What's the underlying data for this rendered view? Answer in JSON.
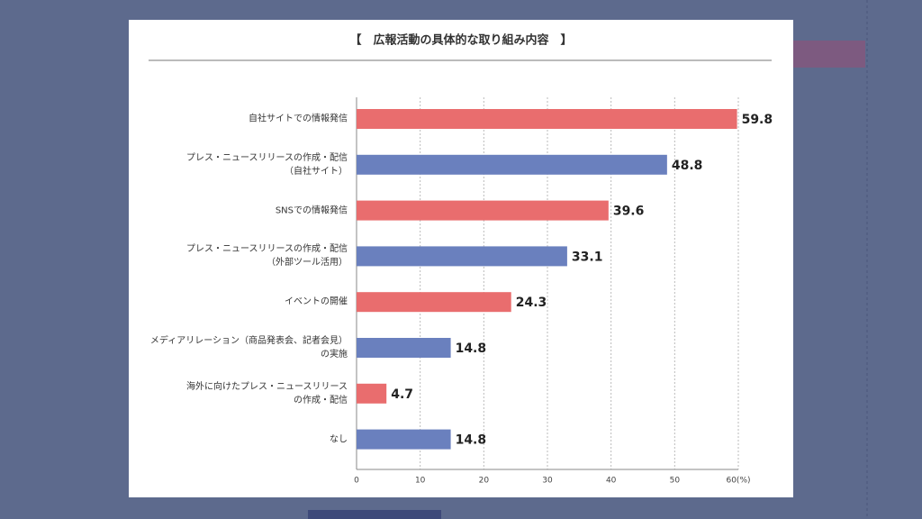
{
  "chart_data": {
    "type": "bar",
    "orientation": "horizontal",
    "title": "【　広報活動の具体的な取り組み内容　】",
    "categories": [
      "自社サイトでの情報発信",
      "プレス・ニュースリリースの作成・配信\n（自社サイト）",
      "SNSでの情報発信",
      "プレス・ニュースリリースの作成・配信\n（外部ツール活用）",
      "イベントの開催",
      "メディアリレーション（商品発表会、記者会見）\nの実施",
      "海外に向けたプレス・ニュースリリース\nの作成・配信",
      "なし"
    ],
    "values": [
      59.8,
      48.8,
      39.6,
      33.1,
      24.3,
      14.8,
      4.7,
      14.8
    ],
    "colors": [
      "#e96d6e",
      "#6a80be",
      "#e96d6e",
      "#6a80be",
      "#e96d6e",
      "#6a80be",
      "#e96d6e",
      "#6a80be"
    ],
    "xlim": [
      0,
      60
    ],
    "xticks": [
      0,
      10,
      20,
      30,
      40,
      50,
      {
        "value": 60,
        "label": "60(%)"
      }
    ],
    "grid": true
  }
}
